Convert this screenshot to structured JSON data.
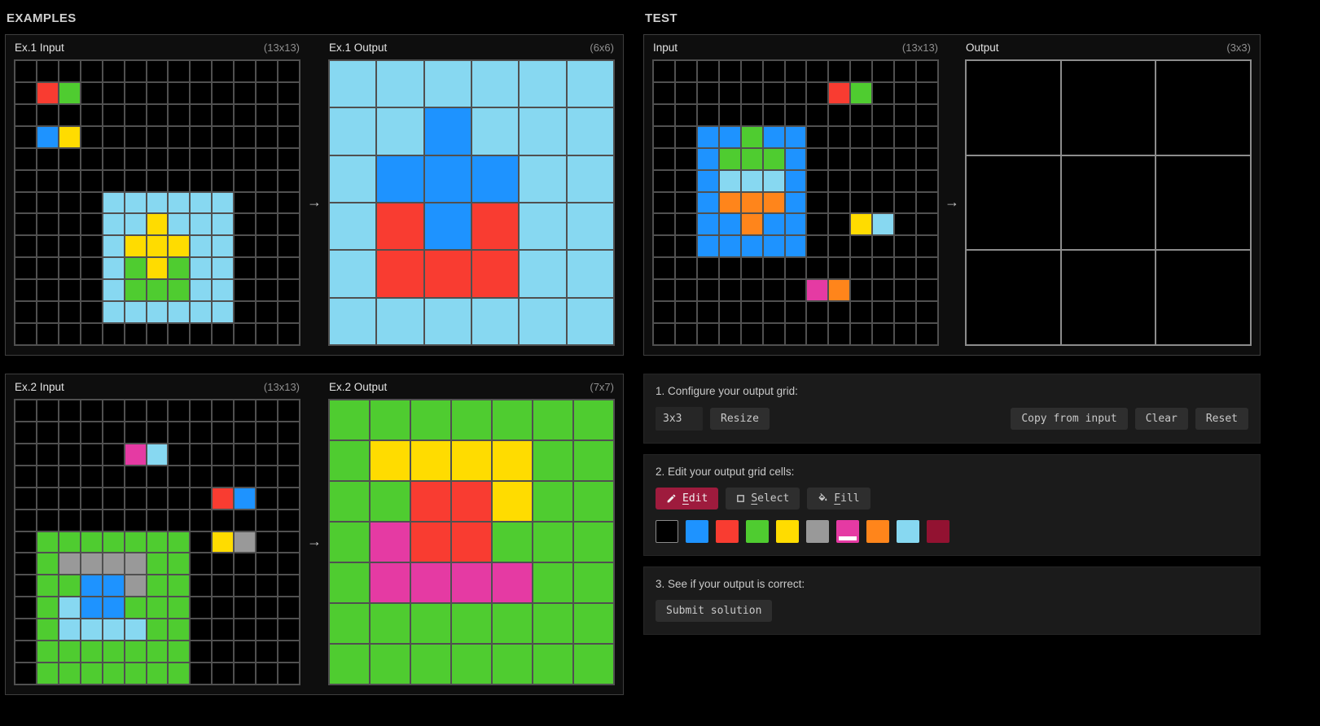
{
  "headers": {
    "examples": "EXAMPLES",
    "test": "TEST"
  },
  "arrow_glyph": "→",
  "palette": {
    "0": "#000000",
    "1": "#1E93FF",
    "2": "#F93C31",
    "3": "#4FCC30",
    "4": "#FFDC00",
    "5": "#999999",
    "6": "#E53AA3",
    "7": "#FF851B",
    "8": "#87D8F1",
    "9": "#921231"
  },
  "color_names": {
    "0": "black",
    "1": "blue",
    "2": "red",
    "3": "green",
    "4": "yellow",
    "5": "gray",
    "6": "magenta",
    "7": "orange",
    "8": "lightblue",
    "9": "maroon"
  },
  "colors": {
    "active_tool_bg": "#9e1b3d",
    "grid_line": "#505050",
    "editable_grid_line": "#8c8c8c",
    "selected_swatch_indicator": "#ffffff"
  },
  "examples": [
    {
      "input": {
        "label": "Ex.1 Input",
        "size": "(13x13)",
        "rows": [
          "0000000000000",
          "0230000000000",
          "0000000000000",
          "0140000000000",
          "0000000000000",
          "0000000000000",
          "0000888888000",
          "0000884888000",
          "0000844488000",
          "0000834388000",
          "0000833388000",
          "0000888888000",
          "0000000000000"
        ]
      },
      "output": {
        "label": "Ex.1 Output",
        "size": "(6x6)",
        "rows": [
          "888888",
          "881888",
          "811188",
          "821288",
          "822288",
          "888888"
        ]
      }
    },
    {
      "input": {
        "label": "Ex.2 Input",
        "size": "(13x13)",
        "rows": [
          "0000000000000",
          "0000000000000",
          "0000068000000",
          "0000000000000",
          "0000000002100",
          "0000000000000",
          "0333333304500",
          "0355553300000",
          "0331153300000",
          "0381133300000",
          "0388883300000",
          "0333333300000",
          "0333333300000"
        ]
      },
      "output": {
        "label": "Ex.2 Output",
        "size": "(7x7)",
        "rows": [
          "3333333",
          "3444433",
          "3322433",
          "3622333",
          "3666633",
          "3333333",
          "3333333"
        ]
      }
    }
  ],
  "test": {
    "input": {
      "label": "Input",
      "size": "(13x13)",
      "rows": [
        "0000000000000",
        "0000000023000",
        "0000000000000",
        "0011311000000",
        "0013331000000",
        "0018881000000",
        "0017771000000",
        "0011711004800",
        "0011111000000",
        "0000000000000",
        "0000000670000",
        "0000000000000",
        "0000000000000"
      ]
    },
    "output": {
      "label": "Output",
      "size": "(3x3)",
      "rows": [
        "000",
        "000",
        "000"
      ]
    }
  },
  "controls": {
    "step1": {
      "label": "1. Configure your output grid:",
      "size_value": "3x3",
      "resize_label": "Resize",
      "copy_label": "Copy from input",
      "clear_label": "Clear",
      "reset_label": "Reset"
    },
    "step2": {
      "label": "2. Edit your output grid cells:",
      "tools": [
        {
          "name": "edit",
          "label": "Edit",
          "icon": "pencil",
          "active": true
        },
        {
          "name": "select",
          "label": "Select",
          "icon": "select-square",
          "active": false
        },
        {
          "name": "fill",
          "label": "Fill",
          "icon": "fill-bucket",
          "active": false
        }
      ],
      "palette_order": [
        "0",
        "1",
        "2",
        "3",
        "4",
        "5",
        "6",
        "7",
        "8",
        "9"
      ],
      "selected_color": "6"
    },
    "step3": {
      "label": "3. See if your output is correct:",
      "submit_label": "Submit solution"
    }
  }
}
